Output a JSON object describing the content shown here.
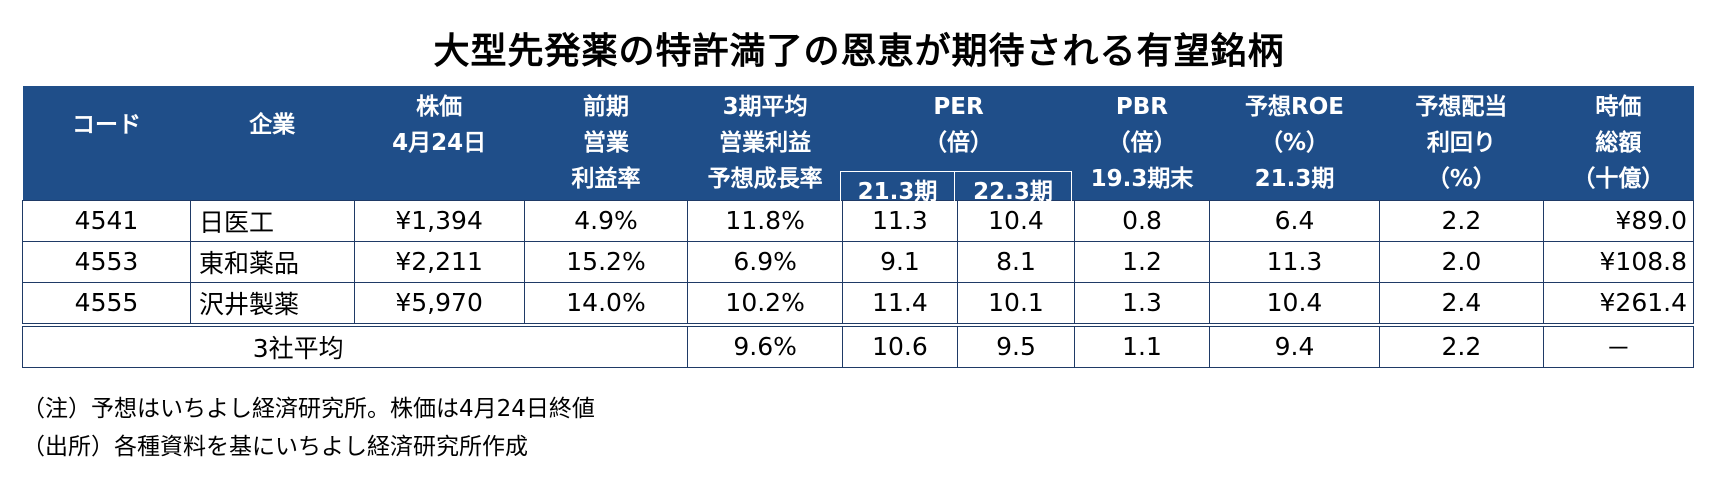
{
  "title": "大型先発薬の特許満了の恩恵が期待される有望銘柄",
  "colors": {
    "header_bg": "#1f4e89",
    "header_text": "#ffffff",
    "border": "#1f3a66"
  },
  "header": {
    "code": "コード",
    "company": "企業",
    "price": [
      "株価",
      "4月24日"
    ],
    "margin": [
      "前期",
      "営業",
      "利益率"
    ],
    "growth": [
      "3期平均",
      "営業利益",
      "予想成長率"
    ],
    "per": [
      "PER",
      "（倍）"
    ],
    "per_sub": [
      "21.3期",
      "22.3期"
    ],
    "pbr": [
      "PBR",
      "（倍）",
      "19.3期末"
    ],
    "roe": [
      "予想ROE",
      "（%）",
      "21.3期"
    ],
    "yield": [
      "予想配当",
      "利回り",
      "（%）"
    ],
    "mcap": [
      "時価",
      "総額",
      "（十億）"
    ]
  },
  "rows": [
    {
      "code": "4541",
      "company": "日医工",
      "price": "¥1,394",
      "margin": "4.9%",
      "growth": "11.8%",
      "per1": "11.3",
      "per2": "10.4",
      "pbr": "0.8",
      "roe": "6.4",
      "yield": "2.2",
      "mcap": "¥89.0"
    },
    {
      "code": "4553",
      "company": "東和薬品",
      "price": "¥2,211",
      "margin": "15.2%",
      "growth": "6.9%",
      "per1": "9.1",
      "per2": "8.1",
      "pbr": "1.2",
      "roe": "11.3",
      "yield": "2.0",
      "mcap": "¥108.8"
    },
    {
      "code": "4555",
      "company": "沢井製薬",
      "price": "¥5,970",
      "margin": "14.0%",
      "growth": "10.2%",
      "per1": "11.4",
      "per2": "10.1",
      "pbr": "1.3",
      "roe": "10.4",
      "yield": "2.4",
      "mcap": "¥261.4"
    }
  ],
  "average": {
    "label": "3社平均",
    "growth": "9.6%",
    "per1": "10.6",
    "per2": "9.5",
    "pbr": "1.1",
    "roe": "9.4",
    "yield": "2.2",
    "mcap": "－"
  },
  "notes": [
    "（注）予想はいちよし経済研究所。株価は4月24日終値",
    "（出所）各種資料を基にいちよし経済研究所作成"
  ]
}
